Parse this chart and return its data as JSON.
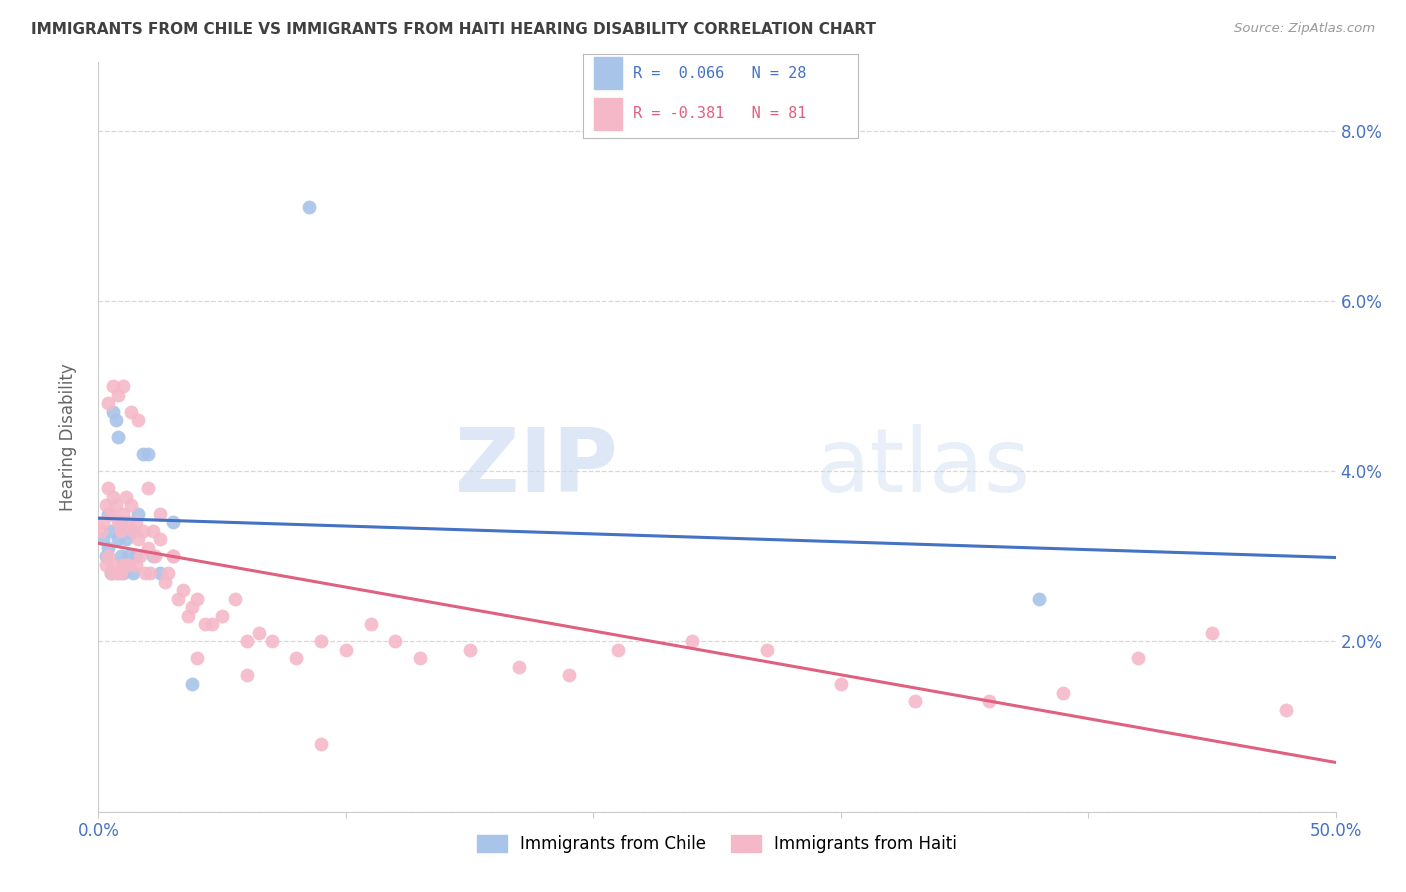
{
  "title": "IMMIGRANTS FROM CHILE VS IMMIGRANTS FROM HAITI HEARING DISABILITY CORRELATION CHART",
  "source": "Source: ZipAtlas.com",
  "ylabel": "Hearing Disability",
  "xlim": [
    0.0,
    0.5
  ],
  "ylim": [
    0.0,
    0.088
  ],
  "yticks": [
    0.0,
    0.02,
    0.04,
    0.06,
    0.08
  ],
  "ytick_labels_right": [
    "",
    "2.0%",
    "4.0%",
    "6.0%",
    "8.0%"
  ],
  "xticks": [
    0.0,
    0.1,
    0.2,
    0.3,
    0.4,
    0.5
  ],
  "xtick_labels": [
    "0.0%",
    "",
    "",
    "",
    "",
    "50.0%"
  ],
  "legend_entries": [
    {
      "label": "Immigrants from Chile",
      "color": "#a8c4e8"
    },
    {
      "label": "Immigrants from Haiti",
      "color": "#f5b8c8"
    }
  ],
  "r_chile": 0.066,
  "n_chile": 28,
  "r_haiti": -0.381,
  "n_haiti": 81,
  "chile_color": "#a8c4e8",
  "haiti_color": "#f5b8c8",
  "chile_line_color": "#4472c4",
  "haiti_line_color": "#e06080",
  "watermark_zip": "ZIP",
  "watermark_atlas": "atlas",
  "background_color": "#ffffff",
  "grid_color": "#d8d8d8",
  "title_color": "#404040",
  "tick_label_color": "#4472c4",
  "chile_scatter_x": [
    0.002,
    0.003,
    0.004,
    0.004,
    0.005,
    0.005,
    0.006,
    0.007,
    0.008,
    0.008,
    0.009,
    0.009,
    0.01,
    0.01,
    0.011,
    0.012,
    0.013,
    0.014,
    0.015,
    0.016,
    0.018,
    0.02,
    0.022,
    0.025,
    0.03,
    0.038,
    0.085,
    0.38
  ],
  "chile_scatter_y": [
    0.032,
    0.03,
    0.035,
    0.031,
    0.033,
    0.028,
    0.047,
    0.046,
    0.044,
    0.032,
    0.034,
    0.03,
    0.033,
    0.028,
    0.032,
    0.03,
    0.033,
    0.028,
    0.03,
    0.035,
    0.042,
    0.042,
    0.03,
    0.028,
    0.034,
    0.015,
    0.071,
    0.025
  ],
  "haiti_scatter_x": [
    0.001,
    0.002,
    0.003,
    0.003,
    0.004,
    0.004,
    0.005,
    0.005,
    0.006,
    0.006,
    0.007,
    0.007,
    0.008,
    0.008,
    0.009,
    0.009,
    0.01,
    0.01,
    0.011,
    0.011,
    0.012,
    0.012,
    0.013,
    0.014,
    0.015,
    0.015,
    0.016,
    0.017,
    0.018,
    0.019,
    0.02,
    0.021,
    0.022,
    0.023,
    0.025,
    0.027,
    0.028,
    0.03,
    0.032,
    0.034,
    0.036,
    0.038,
    0.04,
    0.043,
    0.046,
    0.05,
    0.055,
    0.06,
    0.065,
    0.07,
    0.08,
    0.09,
    0.1,
    0.11,
    0.12,
    0.13,
    0.15,
    0.17,
    0.19,
    0.21,
    0.24,
    0.27,
    0.3,
    0.33,
    0.36,
    0.39,
    0.42,
    0.45,
    0.48,
    0.004,
    0.006,
    0.008,
    0.01,
    0.013,
    0.016,
    0.02,
    0.025,
    0.03,
    0.04,
    0.06,
    0.09
  ],
  "haiti_scatter_y": [
    0.033,
    0.034,
    0.036,
    0.029,
    0.038,
    0.03,
    0.035,
    0.028,
    0.037,
    0.029,
    0.036,
    0.028,
    0.034,
    0.028,
    0.033,
    0.028,
    0.035,
    0.029,
    0.037,
    0.029,
    0.034,
    0.029,
    0.036,
    0.033,
    0.034,
    0.029,
    0.032,
    0.03,
    0.033,
    0.028,
    0.031,
    0.028,
    0.033,
    0.03,
    0.032,
    0.027,
    0.028,
    0.03,
    0.025,
    0.026,
    0.023,
    0.024,
    0.025,
    0.022,
    0.022,
    0.023,
    0.025,
    0.02,
    0.021,
    0.02,
    0.018,
    0.02,
    0.019,
    0.022,
    0.02,
    0.018,
    0.019,
    0.017,
    0.016,
    0.019,
    0.02,
    0.019,
    0.015,
    0.013,
    0.013,
    0.014,
    0.018,
    0.021,
    0.012,
    0.048,
    0.05,
    0.049,
    0.05,
    0.047,
    0.046,
    0.038,
    0.035,
    0.03,
    0.018,
    0.016,
    0.008
  ]
}
